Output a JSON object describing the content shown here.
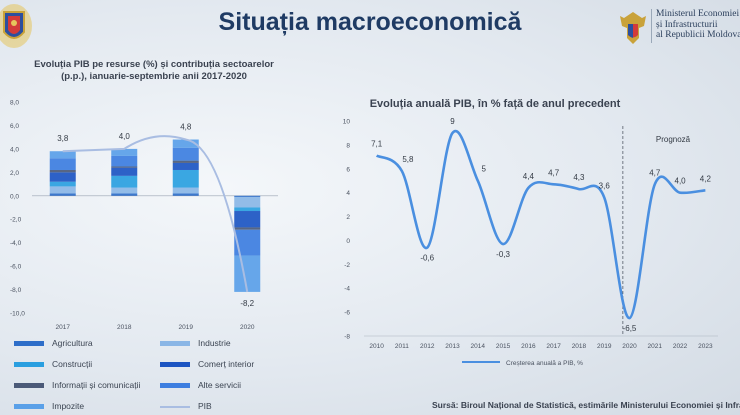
{
  "header": {
    "title": "Situația macroeconomică",
    "ministry_lines": [
      "Ministerul Economiei",
      "și Infrastructurii",
      "al Republicii Moldova"
    ]
  },
  "source": "Sursă: Biroul Național de Statistică, estimările Ministerului Economiei și Infrastructurii",
  "colors": {
    "title": "#1f3b64",
    "agricultura": "#2e6ec9",
    "industrie": "#8ab6e6",
    "constructii": "#2a9fe0",
    "comert": "#1c55c2",
    "informatii": "#4b5a78",
    "alte_servicii": "#3d7ee0",
    "impozite": "#5aa0e8",
    "pib_line": "#a9bde2",
    "annual_line": "#4a8fe0"
  },
  "chart_data": [
    {
      "type": "bar",
      "title": "Evoluția PIB pe resurse (%) și contribuția sectoarelor (p.p.), ianuarie-septembrie anii 2017-2020",
      "categories": [
        "2017",
        "2018",
        "2019",
        "2020"
      ],
      "ylim": [
        -10,
        8
      ],
      "yticks": [
        "-10,0",
        "-8,0",
        "-6,0",
        "-4,0",
        "-2,0",
        "0,0",
        "2,0",
        "4,0",
        "6,0",
        "8,0"
      ],
      "stacked": true,
      "series": [
        {
          "name": "Agricultura",
          "values": [
            0.2,
            0.2,
            0.2,
            -0.1
          ]
        },
        {
          "name": "Industrie",
          "values": [
            0.6,
            0.5,
            0.5,
            -0.9
          ]
        },
        {
          "name": "Construcții",
          "values": [
            0.4,
            1.0,
            1.5,
            -0.3
          ]
        },
        {
          "name": "Comerț interior",
          "values": [
            0.8,
            0.7,
            0.6,
            -1.4
          ]
        },
        {
          "name": "Informații și comunicații",
          "values": [
            0.2,
            0.1,
            0.2,
            -0.2
          ]
        },
        {
          "name": "Alte servicii",
          "values": [
            1.0,
            0.9,
            1.1,
            -2.2
          ]
        },
        {
          "name": "Impozite",
          "values": [
            0.6,
            0.6,
            0.7,
            -3.1
          ]
        }
      ],
      "line": {
        "name": "PIB",
        "values": [
          3.8,
          4.0,
          4.8,
          -8.2
        ],
        "labels": [
          "3,8",
          "4,0",
          "4,8",
          "-8,2"
        ]
      }
    },
    {
      "type": "line",
      "title": "Evoluția anuală PIB, în % față de anul precedent",
      "x": [
        "2010",
        "2011",
        "2012",
        "2013",
        "2014",
        "2015",
        "2016",
        "2017",
        "2018",
        "2019",
        "2020",
        "2021",
        "2022",
        "2023"
      ],
      "ylim": [
        -8,
        10
      ],
      "yticks": [
        "-8",
        "-6",
        "-4",
        "-2",
        "0",
        "2",
        "4",
        "6",
        "8",
        "10"
      ],
      "series": [
        {
          "name": "Creșterea anuală a PIB, %",
          "values": [
            7.1,
            5.8,
            -0.6,
            9.0,
            5.0,
            -0.3,
            4.4,
            4.7,
            4.3,
            3.6,
            -6.5,
            4.7,
            4.0,
            4.2
          ],
          "labels": [
            "7,1",
            "5,8",
            "-0,6",
            "9",
            "5",
            "-0,3",
            "4,4",
            "4,7",
            "4,3",
            "3,6",
            "-6,5",
            "4,7",
            "4,0",
            "4,2"
          ]
        }
      ],
      "annotation": "Prognoză",
      "forecast_from": "2020"
    }
  ]
}
